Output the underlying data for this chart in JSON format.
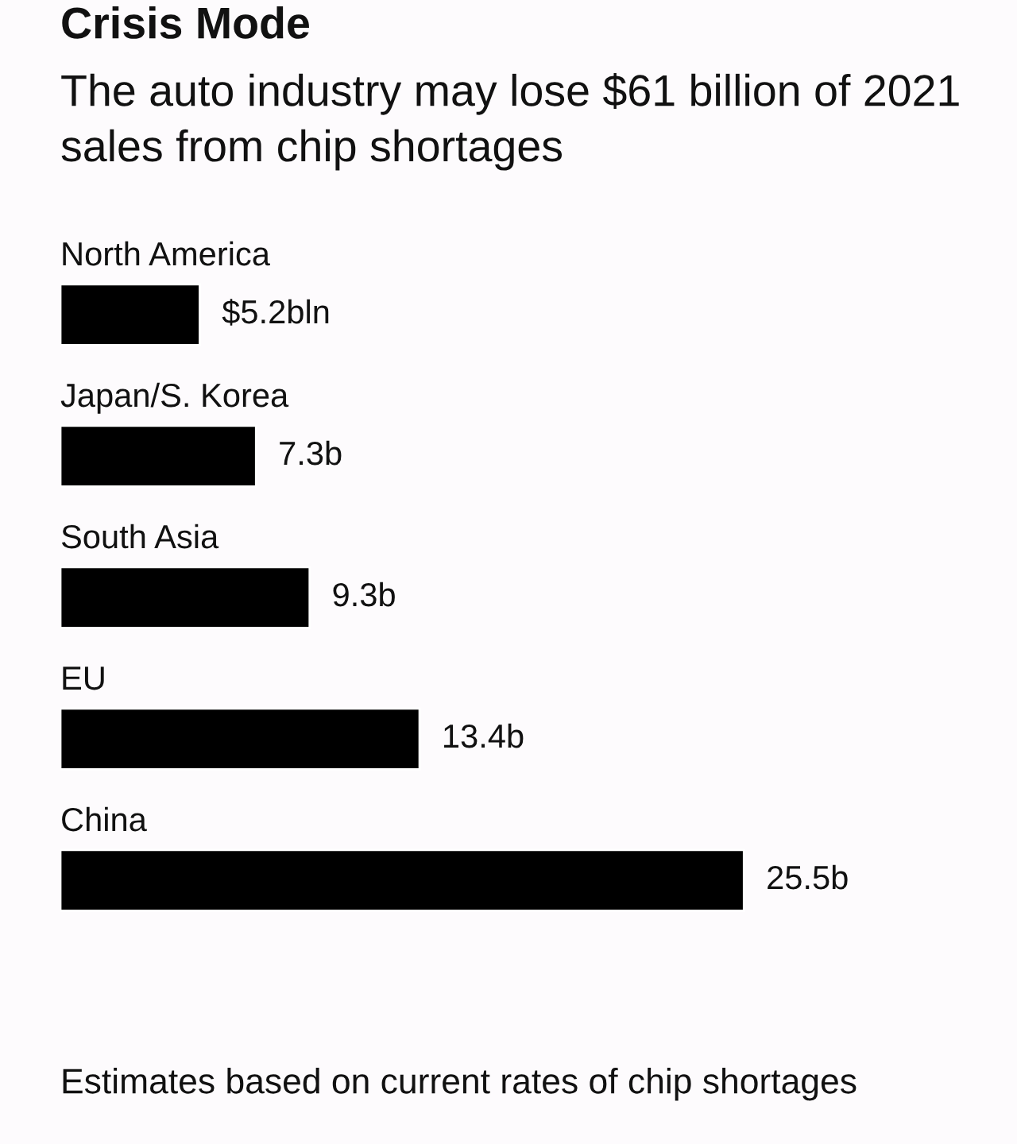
{
  "chart_data": {
    "type": "bar",
    "orientation": "horizontal",
    "title": "Crisis Mode",
    "subtitle": "The auto industry may lose $61 billion of 2021 sales from chip shortages",
    "categories": [
      "North America",
      "Japan/S. Korea",
      "South Asia",
      "EU",
      "China"
    ],
    "values": [
      5.2,
      7.3,
      9.3,
      13.4,
      25.5
    ],
    "value_labels": [
      "$5.2bln",
      "7.3b",
      "9.3b",
      "13.4b",
      "25.5b"
    ],
    "color": "#000000",
    "annotations": [
      "Estimates based on current rates of chip shortages"
    ]
  }
}
